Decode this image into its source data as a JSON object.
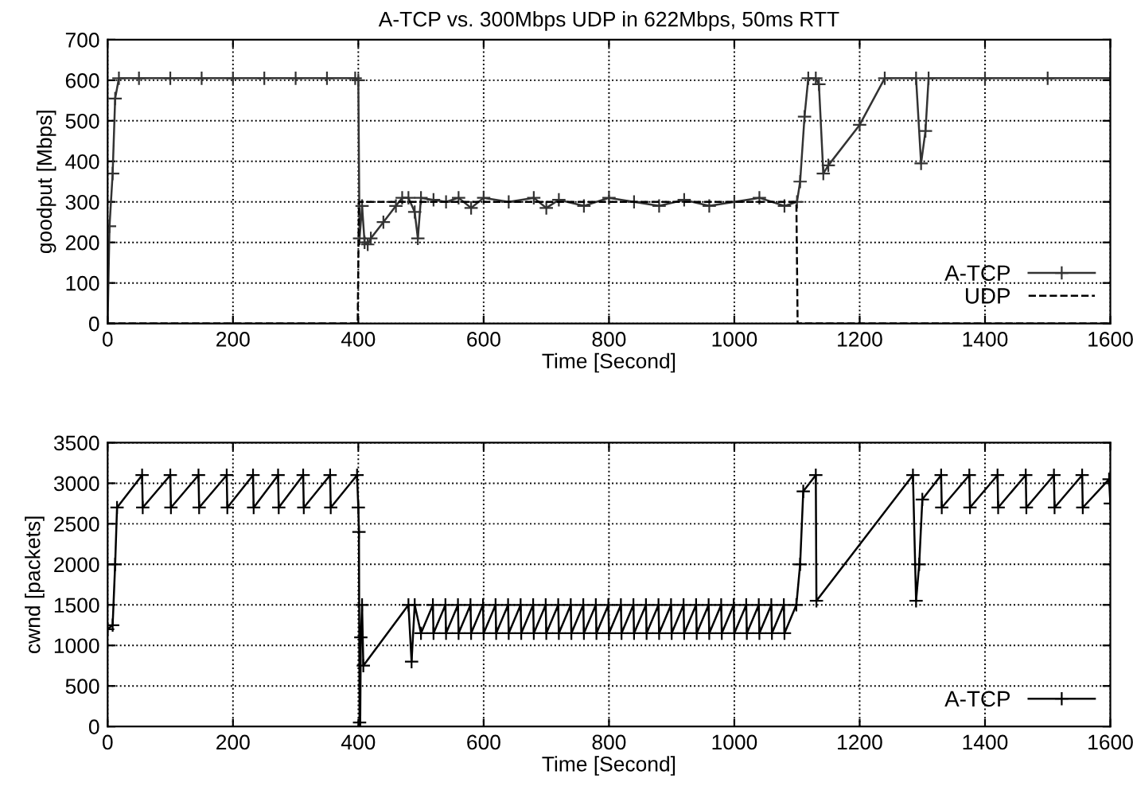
{
  "chart_data": [
    {
      "type": "line",
      "title": "A-TCP vs. 300Mbps UDP in 622Mbps, 50ms RTT",
      "xlabel": "Time [Second]",
      "ylabel": "goodput [Mbps]",
      "xlim": [
        0,
        1600
      ],
      "ylim": [
        0,
        700
      ],
      "xticks": [
        0,
        200,
        400,
        600,
        800,
        1000,
        1200,
        1400,
        1600
      ],
      "yticks": [
        0,
        100,
        200,
        300,
        400,
        500,
        600,
        700
      ],
      "grid": true,
      "legend": "bottom right",
      "series": [
        {
          "name": "A-TCP",
          "color": "#333333",
          "marker": "cross",
          "line_style": "solid",
          "x": [
            0,
            3,
            8,
            12,
            18,
            50,
            100,
            150,
            200,
            250,
            300,
            350,
            395,
            400,
            402,
            406,
            410,
            415,
            420,
            440,
            460,
            470,
            480,
            490,
            495,
            500,
            520,
            540,
            560,
            580,
            600,
            640,
            680,
            700,
            720,
            760,
            800,
            840,
            880,
            920,
            960,
            1000,
            1040,
            1080,
            1100,
            1105,
            1112,
            1118,
            1130,
            1135,
            1142,
            1150,
            1200,
            1240,
            1290,
            1298,
            1305,
            1310,
            1400,
            1500,
            1600
          ],
          "values": [
            0,
            240,
            370,
            555,
            605,
            605,
            605,
            605,
            605,
            605,
            605,
            605,
            605,
            600,
            210,
            290,
            200,
            195,
            210,
            250,
            290,
            310,
            310,
            275,
            210,
            310,
            305,
            300,
            310,
            285,
            310,
            300,
            310,
            285,
            305,
            290,
            310,
            300,
            290,
            305,
            290,
            300,
            310,
            290,
            300,
            350,
            510,
            605,
            605,
            590,
            370,
            390,
            490,
            605,
            605,
            395,
            475,
            605,
            605,
            605,
            605
          ]
        },
        {
          "name": "UDP",
          "color": "#000000",
          "marker": "none",
          "line_style": "dashed",
          "x": [
            0,
            399,
            401,
            1099,
            1101,
            1600
          ],
          "values": [
            0,
            0,
            300,
            300,
            0,
            0
          ]
        }
      ]
    },
    {
      "type": "line",
      "xlabel": "Time [Second]",
      "ylabel": "cwnd [packets]",
      "xlim": [
        0,
        1600
      ],
      "ylim": [
        0,
        3500
      ],
      "xticks": [
        0,
        200,
        400,
        600,
        800,
        1000,
        1200,
        1400,
        1600
      ],
      "yticks": [
        0,
        500,
        1000,
        1500,
        2000,
        2500,
        3000,
        3500
      ],
      "grid": true,
      "legend": "bottom right",
      "series": [
        {
          "name": "A-TCP",
          "color": "#000000",
          "marker": "cross",
          "line_style": "solid",
          "x": [
            0,
            8,
            12,
            15,
            55,
            56,
            100,
            101,
            145,
            146,
            190,
            191,
            232,
            233,
            272,
            273,
            312,
            313,
            355,
            356,
            398,
            400,
            401,
            402,
            403,
            404,
            406,
            408,
            480,
            485,
            490,
            500,
            519,
            520,
            539,
            540,
            559,
            560,
            579,
            580,
            599,
            600,
            619,
            620,
            639,
            640,
            659,
            660,
            679,
            680,
            699,
            700,
            719,
            720,
            739,
            740,
            759,
            760,
            779,
            780,
            799,
            800,
            819,
            820,
            839,
            840,
            859,
            860,
            879,
            880,
            899,
            900,
            919,
            920,
            939,
            940,
            959,
            960,
            979,
            980,
            999,
            1000,
            1019,
            1020,
            1039,
            1040,
            1059,
            1060,
            1079,
            1080,
            1099,
            1105,
            1110,
            1130,
            1131,
            1285,
            1290,
            1295,
            1300,
            1330,
            1331,
            1375,
            1376,
            1420,
            1421,
            1465,
            1466,
            1510,
            1511,
            1555,
            1556,
            1598,
            1600
          ],
          "values": [
            1200,
            1250,
            2000,
            2700,
            3100,
            2700,
            3100,
            2700,
            3100,
            2700,
            3100,
            2700,
            3100,
            2700,
            3100,
            2700,
            3100,
            2700,
            3100,
            2700,
            3100,
            2700,
            2400,
            50,
            0,
            1100,
            1500,
            750,
            1500,
            800,
            1500,
            1150,
            1500,
            1150,
            1500,
            1150,
            1500,
            1150,
            1500,
            1150,
            1500,
            1150,
            1500,
            1150,
            1500,
            1150,
            1500,
            1150,
            1500,
            1150,
            1500,
            1150,
            1500,
            1150,
            1500,
            1150,
            1500,
            1150,
            1500,
            1150,
            1500,
            1150,
            1500,
            1150,
            1500,
            1150,
            1500,
            1150,
            1500,
            1150,
            1500,
            1150,
            1500,
            1150,
            1500,
            1150,
            1500,
            1150,
            1500,
            1150,
            1500,
            1150,
            1500,
            1150,
            1500,
            1150,
            1500,
            1150,
            1500,
            1150,
            1500,
            2000,
            2900,
            3100,
            1550,
            3100,
            1550,
            2000,
            2800,
            3100,
            2700,
            3100,
            2700,
            3100,
            2700,
            3100,
            2700,
            3100,
            2700,
            3100,
            2700,
            3050,
            2750
          ]
        }
      ]
    }
  ]
}
